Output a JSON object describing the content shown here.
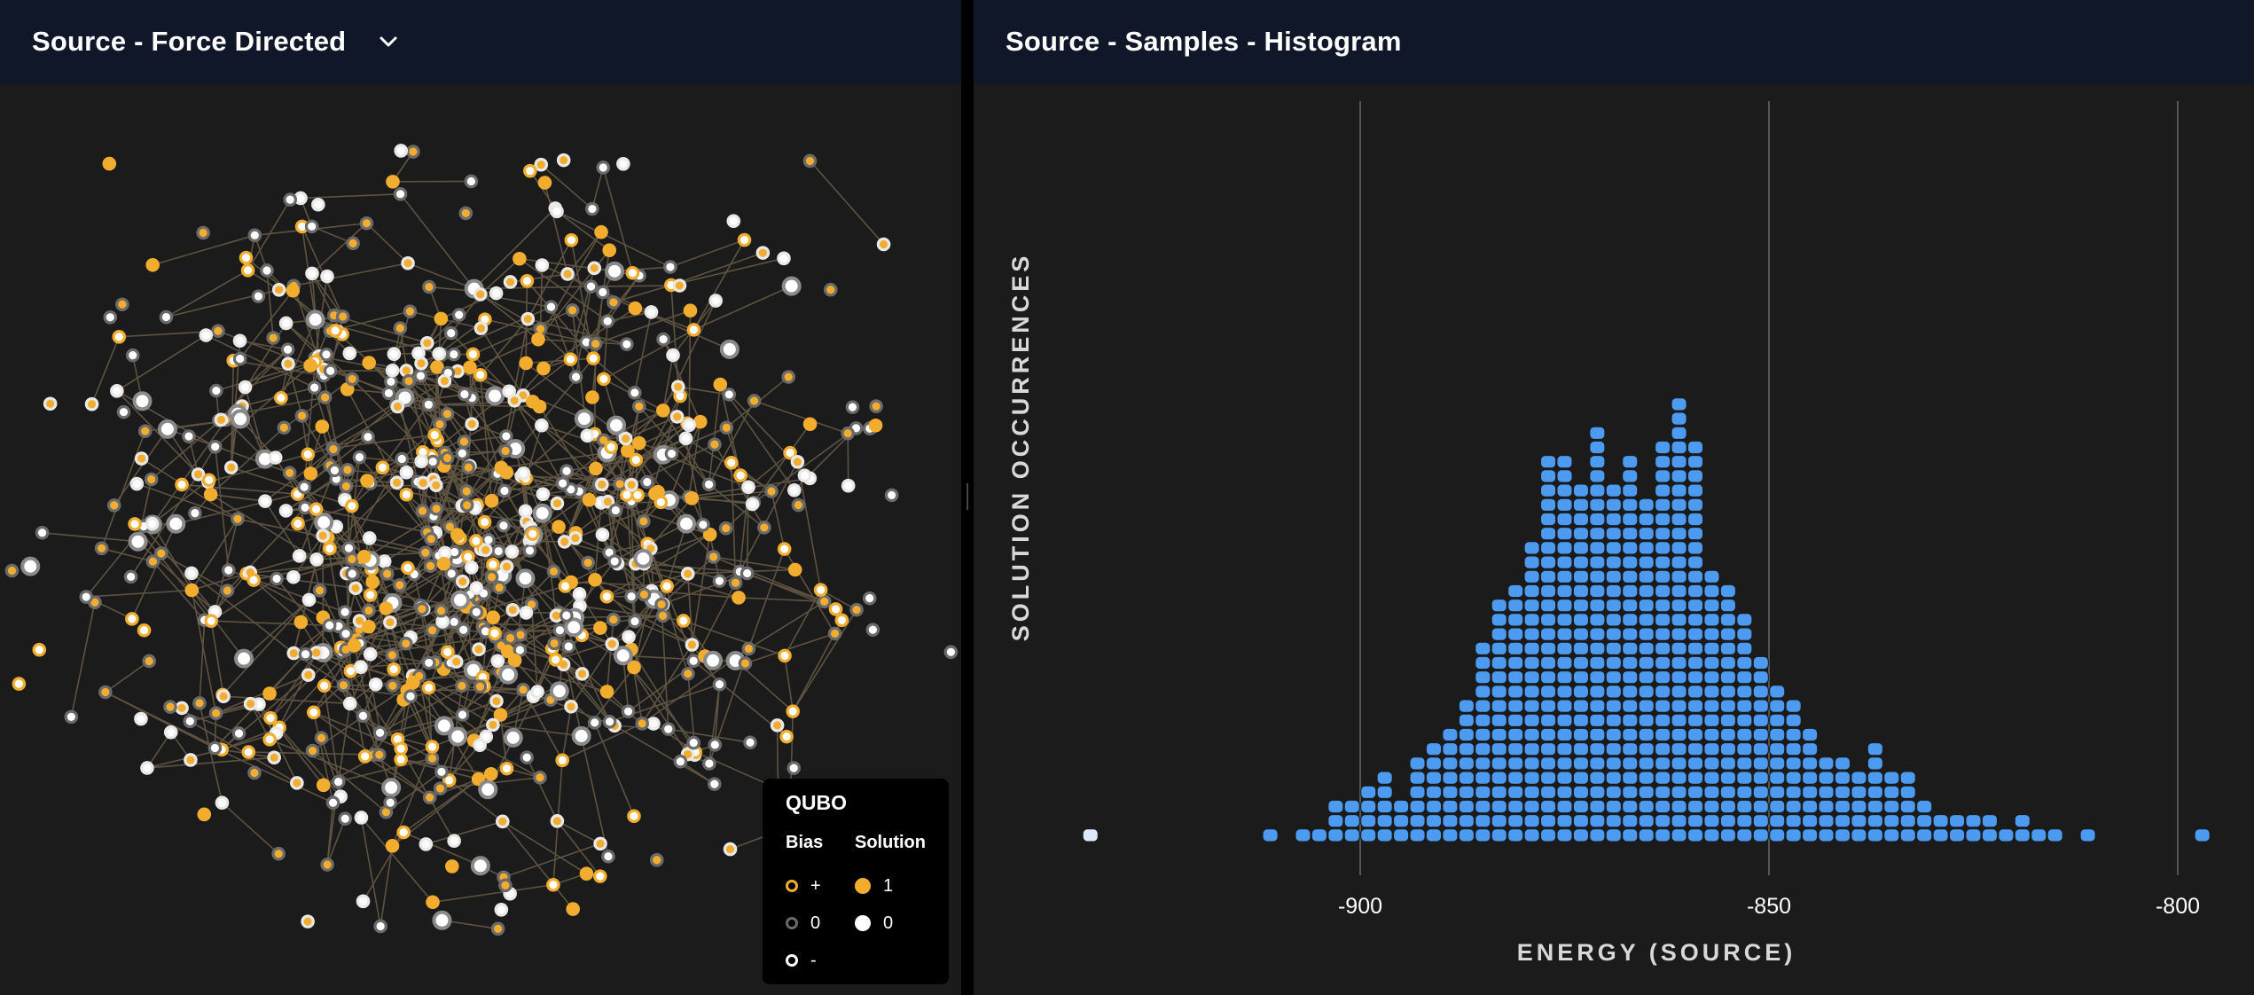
{
  "left_panel": {
    "title": "Source - Force Directed",
    "dropdown_icon": "chevron-down-icon"
  },
  "right_panel": {
    "title": "Source - Samples - Histogram"
  },
  "legend": {
    "title": "QUBO",
    "bias_header": "Bias",
    "solution_header": "Solution",
    "bias_items": [
      {
        "symbol": "+",
        "color": "#f2ad2e"
      },
      {
        "symbol": "0",
        "color": "#6a6a6a"
      },
      {
        "symbol": "-",
        "color": "#ffffff"
      }
    ],
    "solution_items": [
      {
        "symbol": "1",
        "color": "#f2ad2e"
      },
      {
        "symbol": "0",
        "color": "#ffffff"
      }
    ]
  },
  "colors": {
    "header_bg": "#0f1729",
    "panel_bg": "#1b1b1b",
    "bar": "#4d9bf0",
    "edge": "#5e5240",
    "node_yellow": "#f2ad2e"
  },
  "chart_data": {
    "type": "bar",
    "xlabel": "ENERGY (SOURCE)",
    "ylabel": "SOLUTION OCCURRENCES",
    "xlim": [
      -933,
      -793
    ],
    "xticks": [
      -900,
      -850,
      -800
    ],
    "grid": "vertical",
    "x": [
      -933,
      -911,
      -907,
      -905,
      -903,
      -901,
      -899,
      -897,
      -895,
      -893,
      -891,
      -889,
      -887,
      -885,
      -883,
      -881,
      -879,
      -877,
      -875,
      -873,
      -871,
      -869,
      -867,
      -865,
      -863,
      -861,
      -859,
      -857,
      -855,
      -853,
      -851,
      -849,
      -847,
      -845,
      -843,
      -841,
      -839,
      -837,
      -835,
      -833,
      -831,
      -829,
      -827,
      -825,
      -823,
      -821,
      -819,
      -817,
      -815,
      -811,
      -797
    ],
    "values": [
      1,
      1,
      1,
      1,
      3,
      3,
      4,
      5,
      3,
      6,
      7,
      8,
      10,
      14,
      17,
      18,
      21,
      27,
      27,
      25,
      29,
      25,
      27,
      24,
      28,
      31,
      28,
      19,
      18,
      16,
      13,
      11,
      10,
      8,
      6,
      6,
      5,
      7,
      5,
      5,
      3,
      2,
      2,
      2,
      2,
      1,
      2,
      1,
      1,
      1,
      1
    ]
  }
}
